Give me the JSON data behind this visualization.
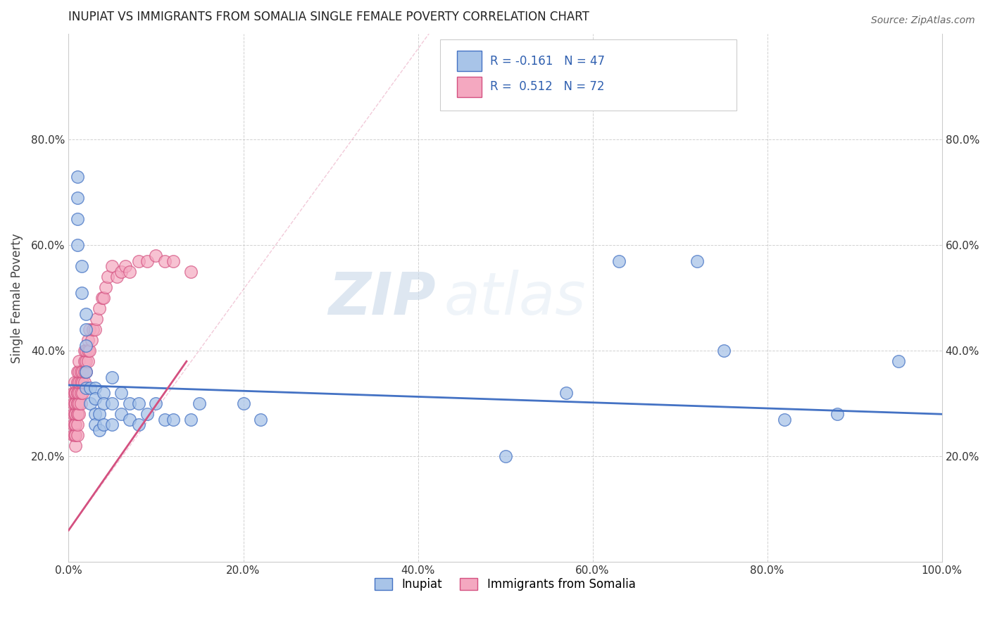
{
  "title": "INUPIAT VS IMMIGRANTS FROM SOMALIA SINGLE FEMALE POVERTY CORRELATION CHART",
  "source": "Source: ZipAtlas.com",
  "ylabel": "Single Female Poverty",
  "xlabel": "",
  "legend_label1": "Inupiat",
  "legend_label2": "Immigrants from Somalia",
  "r1": -0.161,
  "n1": 47,
  "r2": 0.512,
  "n2": 72,
  "xlim": [
    0,
    1.0
  ],
  "ylim": [
    0,
    1.0
  ],
  "xticks": [
    0.0,
    0.2,
    0.4,
    0.6,
    0.8,
    1.0
  ],
  "yticks": [
    0.2,
    0.4,
    0.6,
    0.8
  ],
  "xtick_labels": [
    "0.0%",
    "20.0%",
    "40.0%",
    "60.0%",
    "80.0%",
    "100.0%"
  ],
  "ytick_labels": [
    "20.0%",
    "40.0%",
    "60.0%",
    "80.0%"
  ],
  "color1": "#a8c4e8",
  "color2": "#f4a8c0",
  "line1_color": "#4472c4",
  "line2_color": "#d45080",
  "watermark_zip": "ZIP",
  "watermark_atlas": "atlas",
  "inupiat_x": [
    0.01,
    0.01,
    0.01,
    0.01,
    0.015,
    0.015,
    0.02,
    0.02,
    0.02,
    0.02,
    0.02,
    0.025,
    0.025,
    0.03,
    0.03,
    0.03,
    0.03,
    0.035,
    0.035,
    0.04,
    0.04,
    0.04,
    0.05,
    0.05,
    0.05,
    0.06,
    0.06,
    0.07,
    0.07,
    0.08,
    0.08,
    0.09,
    0.1,
    0.11,
    0.12,
    0.14,
    0.15,
    0.2,
    0.22,
    0.5,
    0.57,
    0.63,
    0.72,
    0.75,
    0.82,
    0.88,
    0.95
  ],
  "inupiat_y": [
    0.73,
    0.69,
    0.65,
    0.6,
    0.56,
    0.51,
    0.47,
    0.44,
    0.41,
    0.36,
    0.33,
    0.33,
    0.3,
    0.33,
    0.31,
    0.28,
    0.26,
    0.28,
    0.25,
    0.32,
    0.3,
    0.26,
    0.35,
    0.3,
    0.26,
    0.32,
    0.28,
    0.3,
    0.27,
    0.3,
    0.26,
    0.28,
    0.3,
    0.27,
    0.27,
    0.27,
    0.3,
    0.3,
    0.27,
    0.2,
    0.32,
    0.57,
    0.57,
    0.4,
    0.27,
    0.28,
    0.38
  ],
  "somalia_x": [
    0.005,
    0.005,
    0.005,
    0.005,
    0.005,
    0.007,
    0.007,
    0.007,
    0.007,
    0.007,
    0.007,
    0.008,
    0.008,
    0.008,
    0.008,
    0.008,
    0.008,
    0.01,
    0.01,
    0.01,
    0.01,
    0.01,
    0.01,
    0.01,
    0.01,
    0.01,
    0.01,
    0.012,
    0.012,
    0.012,
    0.012,
    0.012,
    0.012,
    0.014,
    0.014,
    0.014,
    0.014,
    0.016,
    0.016,
    0.016,
    0.018,
    0.018,
    0.018,
    0.018,
    0.02,
    0.02,
    0.02,
    0.022,
    0.022,
    0.022,
    0.024,
    0.024,
    0.026,
    0.028,
    0.03,
    0.032,
    0.035,
    0.038,
    0.04,
    0.042,
    0.045,
    0.05,
    0.055,
    0.06,
    0.065,
    0.07,
    0.08,
    0.09,
    0.1,
    0.11,
    0.12,
    0.14
  ],
  "somalia_y": [
    0.24,
    0.26,
    0.28,
    0.3,
    0.32,
    0.24,
    0.26,
    0.28,
    0.3,
    0.32,
    0.34,
    0.22,
    0.24,
    0.26,
    0.28,
    0.3,
    0.32,
    0.24,
    0.26,
    0.28,
    0.3,
    0.32,
    0.34,
    0.36,
    0.28,
    0.3,
    0.32,
    0.28,
    0.3,
    0.32,
    0.34,
    0.36,
    0.38,
    0.3,
    0.32,
    0.34,
    0.36,
    0.32,
    0.34,
    0.36,
    0.34,
    0.36,
    0.38,
    0.4,
    0.36,
    0.38,
    0.4,
    0.38,
    0.4,
    0.42,
    0.4,
    0.44,
    0.42,
    0.44,
    0.44,
    0.46,
    0.48,
    0.5,
    0.5,
    0.52,
    0.54,
    0.56,
    0.54,
    0.55,
    0.56,
    0.55,
    0.57,
    0.57,
    0.58,
    0.57,
    0.57,
    0.55
  ],
  "line1_x": [
    0.0,
    1.0
  ],
  "line1_y": [
    0.335,
    0.28
  ],
  "line2_x": [
    0.0,
    0.135
  ],
  "line2_y": [
    0.06,
    0.38
  ]
}
